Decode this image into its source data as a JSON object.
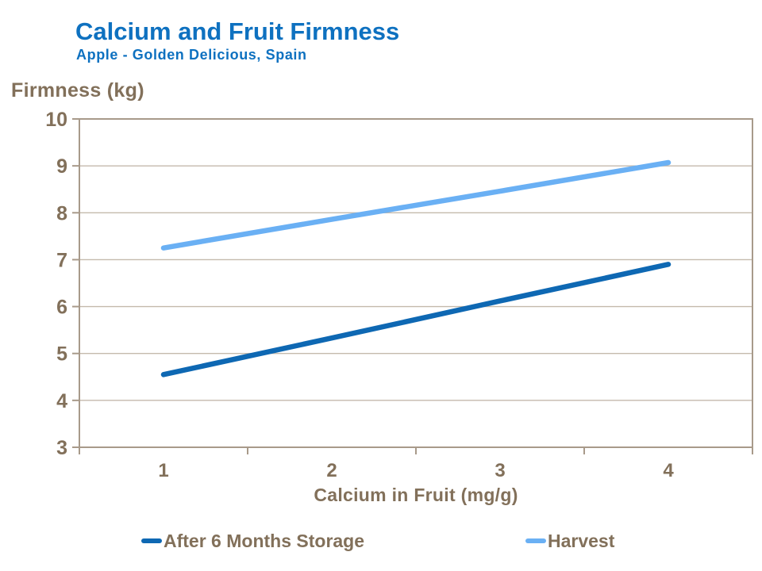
{
  "header": {
    "title": "Calcium and Fruit Firmness",
    "subtitle": "Apple - Golden Delicious, Spain"
  },
  "colors": {
    "title_blue": "#0E71C0",
    "label_brown": "#82705A",
    "frame": "#A89A8A",
    "gridline": "#C4BAAC",
    "background": "#FFFFFF",
    "series_storage": "#0E68B3",
    "series_harvest": "#6AB0F4"
  },
  "chart_data": {
    "type": "line",
    "title": "Calcium and Fruit Firmness",
    "subtitle": "Apple - Golden Delicious, Spain",
    "xlabel": "Calcium in Fruit (mg/g)",
    "ylabel": "Firmness (kg)",
    "x": [
      1,
      2,
      3,
      4
    ],
    "xticks": [
      "1",
      "2",
      "3",
      "4"
    ],
    "yticks": [
      3,
      4,
      5,
      6,
      7,
      8,
      9,
      10
    ],
    "ylim": [
      3,
      10
    ],
    "grid": "horizontal-only",
    "legend_position": "bottom",
    "series": [
      {
        "name": "After 6 Months Storage",
        "color": "#0E68B3",
        "values": [
          4.55,
          5.33,
          6.12,
          6.9
        ]
      },
      {
        "name": "Harvest",
        "color": "#6AB0F4",
        "values": [
          7.25,
          7.86,
          8.46,
          9.07
        ]
      }
    ]
  }
}
